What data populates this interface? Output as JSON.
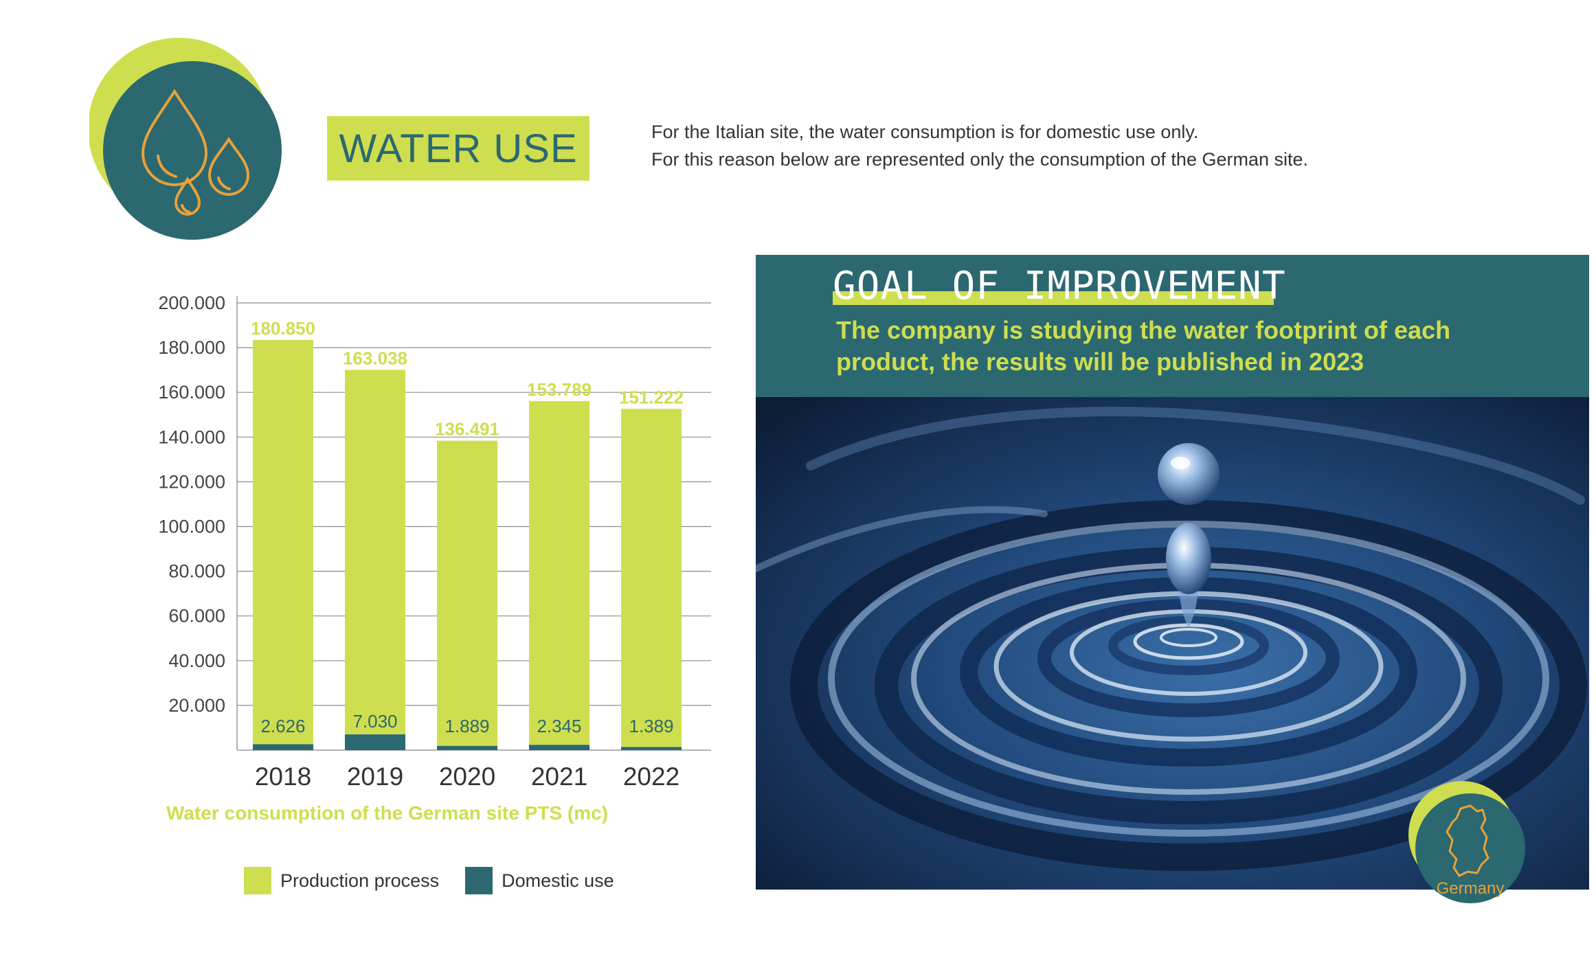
{
  "header": {
    "title": "WATER USE",
    "intro_lines": [
      "For the Italian site, the water consumption is for domestic use only.",
      "For this reason below are represented only the consumption of the German site."
    ]
  },
  "colors": {
    "lime": "#cfde4f",
    "teal": "#2b6870",
    "orange": "#e8a23a"
  },
  "icons": {
    "header_icon": "water-drops-icon",
    "badge_icon": "germany-map-icon"
  },
  "chart_data": {
    "type": "bar",
    "stacked": true,
    "title": "Water consumption of the German site PTS (mc)",
    "categories": [
      "2018",
      "2019",
      "2020",
      "2021",
      "2022"
    ],
    "series": [
      {
        "name": "Production process",
        "color": "#cfde4f",
        "values": [
          180850,
          163038,
          136491,
          153789,
          151222
        ],
        "labels": [
          "180.850",
          "163.038",
          "136.491",
          "153.789",
          "151.222"
        ]
      },
      {
        "name": "Domestic use",
        "color": "#2b6870",
        "values": [
          2626,
          7030,
          1889,
          2345,
          1389
        ],
        "labels": [
          "2.626",
          "7.030",
          "1.889",
          "2.345",
          "1.389"
        ]
      }
    ],
    "y_ticks": [
      {
        "value": 20000,
        "label": "20.000"
      },
      {
        "value": 40000,
        "label": "40.000"
      },
      {
        "value": 60000,
        "label": "60.000"
      },
      {
        "value": 80000,
        "label": "80.000"
      },
      {
        "value": 100000,
        "label": "100.000"
      },
      {
        "value": 120000,
        "label": "120.000"
      },
      {
        "value": 140000,
        "label": "140.000"
      },
      {
        "value": 160000,
        "label": "160.000"
      },
      {
        "value": 180000,
        "label": "180.000"
      },
      {
        "value": 200000,
        "label": "200.000"
      }
    ],
    "ylim": [
      0,
      200000
    ],
    "grid": true,
    "legend_position": "bottom"
  },
  "goal": {
    "title": "GOAL OF IMPROVEMENT",
    "lines": [
      "The company is studying the water footprint of each",
      "product, the results will be published in 2023"
    ]
  },
  "badge": {
    "label": "Germany"
  }
}
